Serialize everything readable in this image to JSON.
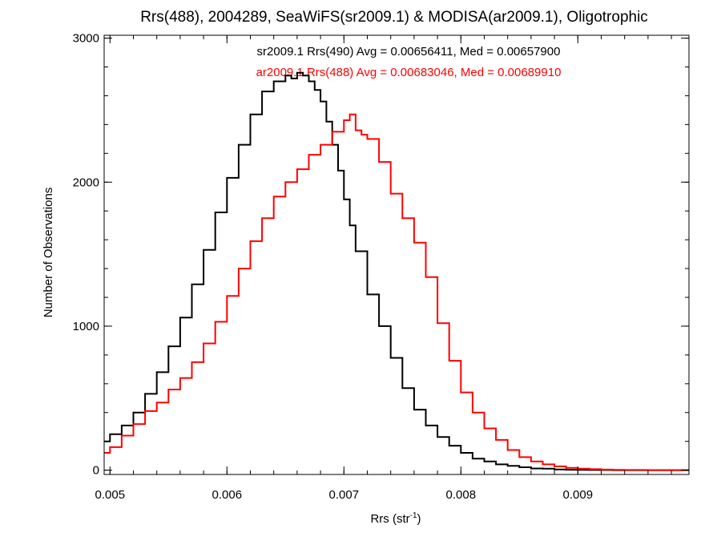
{
  "chart_data": {
    "type": "line",
    "title": "Rrs(488), 2004289, SeaWiFS(sr2009.1) & MODISA(ar2009.1), Oligotrophic",
    "xlabel_base": "Rrs (str",
    "xlabel_sup": "-1",
    "xlabel_end": ")",
    "ylabel": "Number of Observations",
    "xlim": [
      0.00495,
      0.00995
    ],
    "ylim": [
      -30,
      3020
    ],
    "xticks": [
      {
        "value": 0.005,
        "label": "0.005"
      },
      {
        "value": 0.006,
        "label": "0.006"
      },
      {
        "value": 0.007,
        "label": "0.007"
      },
      {
        "value": 0.008,
        "label": "0.008"
      },
      {
        "value": 0.009,
        "label": "0.009"
      }
    ],
    "yticks": [
      {
        "value": 0,
        "label": "0"
      },
      {
        "value": 1000,
        "label": "1000"
      },
      {
        "value": 2000,
        "label": "2000"
      },
      {
        "value": 3000,
        "label": "3000"
      }
    ],
    "annotations": [
      {
        "text": "sr2009.1 Rrs(490) Avg = 0.00656411, Med = 0.00657900",
        "color": "#000000"
      },
      {
        "text": "ar2009.1 Rrs(488) Avg = 0.00683046, Med = 0.00689910",
        "color": "#ff0000"
      }
    ],
    "series": [
      {
        "color": "#000000",
        "style": "step",
        "x": [
          0.00495,
          0.005,
          0.0051,
          0.0052,
          0.0053,
          0.0054,
          0.0055,
          0.0056,
          0.0057,
          0.0058,
          0.0059,
          0.006,
          0.0061,
          0.0062,
          0.0063,
          0.0064,
          0.0065,
          0.00655,
          0.0066,
          0.00665,
          0.0067,
          0.00675,
          0.0068,
          0.00685,
          0.0069,
          0.00695,
          0.007,
          0.00705,
          0.0071,
          0.0072,
          0.0073,
          0.0074,
          0.0075,
          0.0076,
          0.0077,
          0.0078,
          0.0079,
          0.008,
          0.0081,
          0.0082,
          0.0083,
          0.0084,
          0.0085,
          0.0086,
          0.0087,
          0.0088,
          0.0089,
          0.009,
          0.0091,
          0.0092,
          0.0093,
          0.0094,
          0.0095,
          0.0096,
          0.0097,
          0.0098,
          0.0099,
          0.00995
        ],
        "y": [
          200,
          250,
          310,
          400,
          530,
          680,
          860,
          1060,
          1290,
          1530,
          1790,
          2030,
          2260,
          2470,
          2630,
          2700,
          2740,
          2720,
          2760,
          2740,
          2700,
          2640,
          2560,
          2420,
          2260,
          2080,
          1880,
          1700,
          1520,
          1220,
          1000,
          780,
          570,
          420,
          310,
          230,
          170,
          120,
          80,
          60,
          40,
          30,
          20,
          12,
          10,
          5,
          3,
          2,
          1,
          1,
          0,
          0,
          0,
          0,
          0,
          0,
          0,
          0
        ]
      },
      {
        "color": "#ff0000",
        "style": "step",
        "x": [
          0.00495,
          0.005,
          0.0051,
          0.0052,
          0.0053,
          0.0054,
          0.0055,
          0.0056,
          0.0057,
          0.0058,
          0.0059,
          0.006,
          0.0061,
          0.0062,
          0.0063,
          0.0064,
          0.0065,
          0.0066,
          0.0067,
          0.0068,
          0.0069,
          0.007,
          0.00705,
          0.0071,
          0.00715,
          0.0072,
          0.0073,
          0.0074,
          0.0075,
          0.0076,
          0.0077,
          0.0078,
          0.0079,
          0.008,
          0.0081,
          0.0082,
          0.0083,
          0.0084,
          0.0085,
          0.0086,
          0.0087,
          0.0088,
          0.0089,
          0.009,
          0.0091,
          0.0092,
          0.0093,
          0.0094,
          0.0095,
          0.0096,
          0.0097,
          0.0098,
          0.0099,
          0.00995
        ],
        "y": [
          120,
          160,
          240,
          320,
          410,
          470,
          560,
          640,
          750,
          880,
          1030,
          1210,
          1400,
          1590,
          1750,
          1900,
          2000,
          2090,
          2190,
          2260,
          2350,
          2430,
          2470,
          2360,
          2330,
          2300,
          2140,
          1920,
          1750,
          1580,
          1340,
          1020,
          760,
          540,
          400,
          290,
          210,
          140,
          90,
          60,
          40,
          26,
          16,
          10,
          7,
          4,
          2,
          1,
          1,
          0,
          0,
          0,
          0,
          0
        ]
      }
    ]
  }
}
